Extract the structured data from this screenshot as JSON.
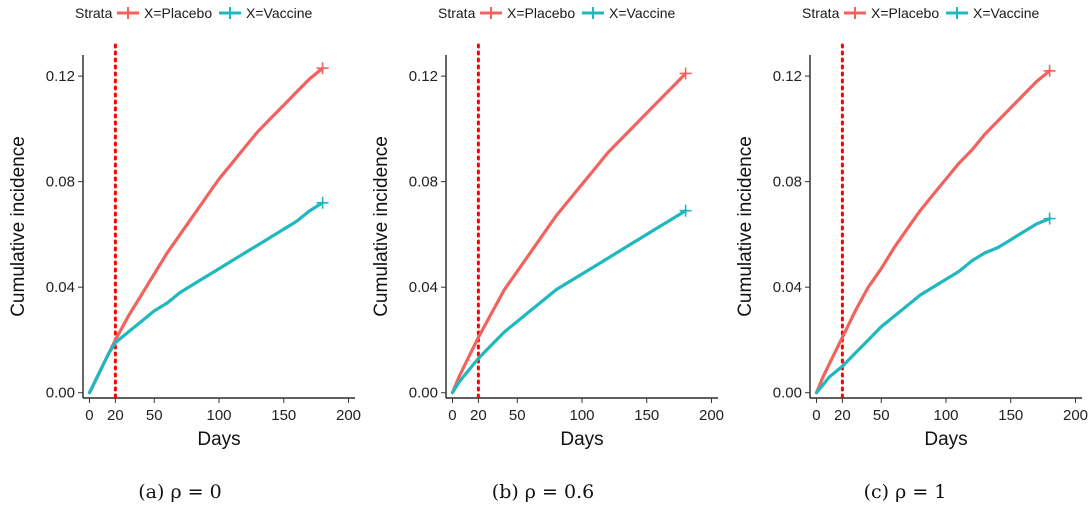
{
  "legend": {
    "title": "Strata",
    "items": [
      {
        "label": "X=Placebo",
        "color": "#F0635F"
      },
      {
        "label": "X=Vaccine",
        "color": "#1FB8BF"
      }
    ]
  },
  "chart_data": [
    {
      "type": "line",
      "caption": "(a) ρ = 0",
      "xlabel": "Days",
      "ylabel": "Cumulative incidence",
      "xlim": [
        -5,
        205
      ],
      "ylim": [
        -0.002,
        0.128
      ],
      "xticks": [
        0,
        20,
        50,
        100,
        150,
        200
      ],
      "yticks": [
        "0.00",
        "0.04",
        "0.08",
        "0.12"
      ],
      "vline": {
        "x": 20,
        "color": "#FF0000",
        "style": "dotted"
      },
      "grid": false,
      "legend_position": "top",
      "series": [
        {
          "name": "X=Placebo",
          "color": "#F0635F",
          "x": [
            0,
            5,
            10,
            15,
            20,
            30,
            40,
            50,
            60,
            70,
            80,
            90,
            100,
            110,
            120,
            130,
            140,
            150,
            160,
            170,
            180
          ],
          "y": [
            0.0,
            0.005,
            0.01,
            0.015,
            0.02,
            0.029,
            0.037,
            0.045,
            0.053,
            0.06,
            0.067,
            0.074,
            0.081,
            0.087,
            0.093,
            0.099,
            0.104,
            0.109,
            0.114,
            0.119,
            0.123
          ]
        },
        {
          "name": "X=Vaccine",
          "color": "#1FB8BF",
          "x": [
            0,
            5,
            10,
            15,
            20,
            30,
            40,
            50,
            60,
            70,
            80,
            90,
            100,
            110,
            120,
            130,
            140,
            150,
            160,
            170,
            180
          ],
          "y": [
            0.0,
            0.005,
            0.01,
            0.015,
            0.019,
            0.023,
            0.027,
            0.031,
            0.034,
            0.038,
            0.041,
            0.044,
            0.047,
            0.05,
            0.053,
            0.056,
            0.059,
            0.062,
            0.065,
            0.069,
            0.072
          ]
        }
      ]
    },
    {
      "type": "line",
      "caption": "(b) ρ = 0.6",
      "xlabel": "Days",
      "ylabel": "Cumulative incidence",
      "xlim": [
        -5,
        205
      ],
      "ylim": [
        -0.002,
        0.128
      ],
      "xticks": [
        0,
        20,
        50,
        100,
        150,
        200
      ],
      "yticks": [
        "0.00",
        "0.04",
        "0.08",
        "0.12"
      ],
      "vline": {
        "x": 20,
        "color": "#FF0000",
        "style": "dotted"
      },
      "grid": false,
      "legend_position": "top",
      "series": [
        {
          "name": "X=Placebo",
          "color": "#F0635F",
          "x": [
            0,
            5,
            10,
            15,
            20,
            30,
            40,
            50,
            60,
            70,
            80,
            90,
            100,
            110,
            120,
            130,
            140,
            150,
            160,
            170,
            180
          ],
          "y": [
            0.0,
            0.006,
            0.011,
            0.016,
            0.021,
            0.03,
            0.039,
            0.046,
            0.053,
            0.06,
            0.067,
            0.073,
            0.079,
            0.085,
            0.091,
            0.096,
            0.101,
            0.106,
            0.111,
            0.116,
            0.121
          ]
        },
        {
          "name": "X=Vaccine",
          "color": "#1FB8BF",
          "x": [
            0,
            5,
            10,
            15,
            20,
            30,
            40,
            50,
            60,
            70,
            80,
            90,
            100,
            110,
            120,
            130,
            140,
            150,
            160,
            170,
            180
          ],
          "y": [
            0.0,
            0.004,
            0.007,
            0.01,
            0.013,
            0.018,
            0.023,
            0.027,
            0.031,
            0.035,
            0.039,
            0.042,
            0.045,
            0.048,
            0.051,
            0.054,
            0.057,
            0.06,
            0.063,
            0.066,
            0.069
          ]
        }
      ]
    },
    {
      "type": "line",
      "caption": "(c) ρ = 1",
      "xlabel": "Days",
      "ylabel": "Cumulative incidence",
      "xlim": [
        -5,
        205
      ],
      "ylim": [
        -0.002,
        0.128
      ],
      "xticks": [
        0,
        20,
        50,
        100,
        150,
        200
      ],
      "yticks": [
        "0.00",
        "0.04",
        "0.08",
        "0.12"
      ],
      "vline": {
        "x": 20,
        "color": "#FF0000",
        "style": "dotted"
      },
      "grid": false,
      "legend_position": "top",
      "series": [
        {
          "name": "X=Placebo",
          "color": "#F0635F",
          "x": [
            0,
            5,
            10,
            15,
            20,
            30,
            40,
            50,
            60,
            70,
            80,
            90,
            100,
            110,
            120,
            130,
            140,
            150,
            160,
            170,
            180
          ],
          "y": [
            0.0,
            0.006,
            0.011,
            0.016,
            0.021,
            0.031,
            0.04,
            0.047,
            0.055,
            0.062,
            0.069,
            0.075,
            0.081,
            0.087,
            0.092,
            0.098,
            0.103,
            0.108,
            0.113,
            0.118,
            0.122
          ]
        },
        {
          "name": "X=Vaccine",
          "color": "#1FB8BF",
          "x": [
            0,
            5,
            10,
            15,
            20,
            30,
            40,
            50,
            60,
            70,
            80,
            90,
            100,
            110,
            120,
            130,
            140,
            150,
            160,
            170,
            180
          ],
          "y": [
            0.0,
            0.003,
            0.006,
            0.008,
            0.01,
            0.015,
            0.02,
            0.025,
            0.029,
            0.033,
            0.037,
            0.04,
            0.043,
            0.046,
            0.05,
            0.053,
            0.055,
            0.058,
            0.061,
            0.064,
            0.066
          ]
        }
      ]
    }
  ]
}
